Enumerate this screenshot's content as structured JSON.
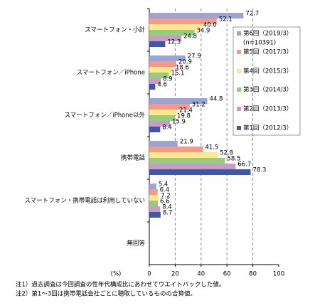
{
  "chart_data": {
    "type": "hbar",
    "categories": [
      "スマートフォン・小計",
      "スマートフォン／iPhone",
      "スマートフォン／iPhone以外",
      "携帯電話",
      "スマートフォン・携帯電話は利用していない",
      "無回答"
    ],
    "series": [
      {
        "name": "第6回（2019/3）",
        "color": "#9aa5d6",
        "values": [
          72.7,
          27.9,
          44.8,
          21.9,
          5.4,
          null
        ],
        "value_labels": [
          "72.7",
          "27.9",
          "44.8",
          "21.9",
          "5.4",
          null
        ]
      },
      {
        "name": "第5回（2017/3）",
        "color": "#f59a8a",
        "values": [
          52.1,
          20.9,
          31.2,
          41.5,
          6.4,
          null
        ],
        "value_labels": [
          "52.1",
          "20.9",
          "31.2",
          "41.5",
          "6.4",
          null
        ]
      },
      {
        "name": "第4回（2015/3）",
        "color": "#fde98b",
        "values": [
          40.0,
          18.6,
          21.4,
          52.8,
          7.2,
          null
        ],
        "value_labels": [
          "40.0",
          "18.6",
          "21.4",
          "52.8",
          "7.2",
          null
        ]
      },
      {
        "name": "第3回（2014/3）",
        "color": "#99cc7a",
        "values": [
          34.9,
          15.1,
          19.8,
          58.5,
          6.6,
          null
        ],
        "value_labels": [
          "34.9",
          "15.1",
          "19.8",
          "58.5",
          "6.6",
          null
        ]
      },
      {
        "name": "第2回（2013/3）",
        "color": "#c79cc7",
        "values": [
          24.8,
          8.9,
          15.9,
          66.7,
          8.4,
          null
        ],
        "value_labels": [
          "24.8",
          "8.9",
          "15.9",
          "66.7",
          "8.4",
          null
        ]
      },
      {
        "name": "第1回（2012/3）",
        "color": "#3f57a6",
        "values": [
          12.3,
          4.6,
          8.4,
          78.3,
          8.7,
          null
        ],
        "value_labels": [
          "12.3",
          "4.6",
          "8.4",
          "78.3",
          "8.7",
          null
        ]
      }
    ],
    "sample_size": "(n=10391)",
    "xlabel": "(%)",
    "xlim": [
      0,
      100
    ],
    "xticks": [
      0,
      20,
      40,
      60,
      80,
      100
    ],
    "grid": true,
    "notes": [
      "注1）過去調査は今回調査の性年代構成比にあわせてウエイトバックした値。",
      "注2）第1～3回は携帯電話会社ごとに聴取しているものの合算値。"
    ]
  }
}
